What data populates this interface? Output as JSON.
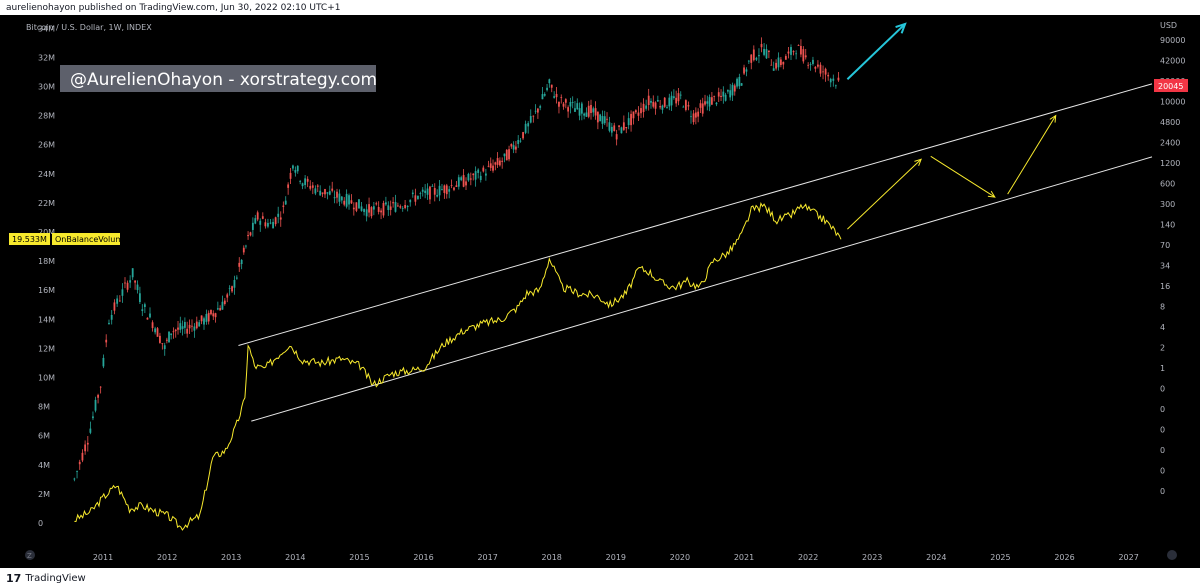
{
  "header": {
    "author": "aurelienohayon",
    "published_on": "published on TradingView.com,",
    "date": "Jun 30, 2022 02:10 UTC+1"
  },
  "footer": {
    "logo_icon": "tradingview-logo-icon",
    "brand": "TradingView"
  },
  "chart_data": {
    "type": "line",
    "title": "Bitcoin / U.S. Dollar, 1W, INDEX",
    "watermark_label": "@AurelienOhayon - xorstrategy.com",
    "indicator": {
      "name": "OnBalanceVolume",
      "value": "19.533M",
      "color": "#f7e92d"
    },
    "price_tag": {
      "value": "20045",
      "color": "#f23645"
    },
    "x_ticks": [
      "2011",
      "2012",
      "2013",
      "2014",
      "2015",
      "2016",
      "2017",
      "2018",
      "2019",
      "2020",
      "2021",
      "2022",
      "2023",
      "2024",
      "2025",
      "2026",
      "2027"
    ],
    "left_axis": {
      "labels": [
        "34M",
        "32M",
        "30M",
        "28M",
        "26M",
        "24M",
        "22M",
        "20M",
        "18M",
        "16M",
        "14M",
        "12M",
        "10M",
        "8M",
        "6M",
        "4M",
        "2M",
        "0"
      ],
      "min": 0,
      "max": 34000000
    },
    "right_axis": {
      "unit": "USD",
      "labels": [
        "90000",
        "42000",
        "20000",
        "10000",
        "4800",
        "2400",
        "1200",
        "600",
        "300",
        "140",
        "70",
        "34",
        "16",
        "8",
        "4",
        "2",
        "1",
        "0",
        "0",
        "0",
        "0",
        "0",
        "0"
      ],
      "scale": "log"
    },
    "series": [
      {
        "kind": "candlestick",
        "up_color": "#26a69a",
        "down_color": "#ef5350",
        "points": [
          [
            2010.54,
            3.0
          ],
          [
            2010.75,
            5.8
          ],
          [
            2010.95,
            9.5
          ],
          [
            2011.08,
            14.0
          ],
          [
            2011.25,
            15.5
          ],
          [
            2011.45,
            17.1
          ],
          [
            2011.6,
            15.0
          ],
          [
            2011.8,
            13.5
          ],
          [
            2011.95,
            12.0
          ],
          [
            2012.05,
            13.2
          ],
          [
            2012.3,
            13.4
          ],
          [
            2012.6,
            14.0
          ],
          [
            2012.85,
            15.0
          ],
          [
            2013.0,
            16.0
          ],
          [
            2013.15,
            18.0
          ],
          [
            2013.25,
            19.5
          ],
          [
            2013.4,
            21.0
          ],
          [
            2013.6,
            20.5
          ],
          [
            2013.8,
            21.5
          ],
          [
            2013.95,
            24.8
          ],
          [
            2014.1,
            23.5
          ],
          [
            2014.3,
            23.0
          ],
          [
            2014.6,
            22.5
          ],
          [
            2014.9,
            22.0
          ],
          [
            2015.1,
            21.5
          ],
          [
            2015.4,
            21.6
          ],
          [
            2015.7,
            22.0
          ],
          [
            2015.9,
            22.5
          ],
          [
            2016.2,
            22.8
          ],
          [
            2016.5,
            23.3
          ],
          [
            2016.8,
            23.8
          ],
          [
            2017.0,
            24.3
          ],
          [
            2017.25,
            25.0
          ],
          [
            2017.5,
            26.5
          ],
          [
            2017.7,
            27.8
          ],
          [
            2017.95,
            30.1
          ],
          [
            2018.1,
            29.0
          ],
          [
            2018.35,
            28.5
          ],
          [
            2018.6,
            28.3
          ],
          [
            2018.85,
            27.5
          ],
          [
            2019.0,
            26.8
          ],
          [
            2019.3,
            28.0
          ],
          [
            2019.5,
            29.0
          ],
          [
            2019.75,
            28.8
          ],
          [
            2020.0,
            29.2
          ],
          [
            2020.2,
            28.0
          ],
          [
            2020.45,
            29.0
          ],
          [
            2020.7,
            29.3
          ],
          [
            2020.95,
            30.5
          ],
          [
            2021.1,
            32.0
          ],
          [
            2021.3,
            32.6
          ],
          [
            2021.45,
            31.5
          ],
          [
            2021.6,
            31.7
          ],
          [
            2021.8,
            32.7
          ],
          [
            2021.95,
            32.0
          ],
          [
            2022.1,
            31.5
          ],
          [
            2022.3,
            30.8
          ],
          [
            2022.5,
            30.1
          ]
        ]
      },
      {
        "name": "OnBalanceVolume",
        "kind": "line",
        "color": "#f7e92d",
        "points": [
          [
            2010.54,
            0.2
          ],
          [
            2010.8,
            0.8
          ],
          [
            2011.0,
            1.8
          ],
          [
            2011.2,
            2.6
          ],
          [
            2011.4,
            1.0
          ],
          [
            2011.6,
            1.2
          ],
          [
            2011.8,
            0.8
          ],
          [
            2012.0,
            0.5
          ],
          [
            2012.2,
            -0.3
          ],
          [
            2012.5,
            0.5
          ],
          [
            2012.7,
            4.5
          ],
          [
            2012.9,
            5.0
          ],
          [
            2013.05,
            6.5
          ],
          [
            2013.2,
            8.5
          ],
          [
            2013.25,
            12.3
          ],
          [
            2013.35,
            10.8
          ],
          [
            2013.5,
            10.6
          ],
          [
            2013.6,
            11.0
          ],
          [
            2013.9,
            12.3
          ],
          [
            2014.1,
            11.2
          ],
          [
            2014.4,
            11.0
          ],
          [
            2014.7,
            11.3
          ],
          [
            2015.0,
            10.8
          ],
          [
            2015.2,
            9.5
          ],
          [
            2015.5,
            10.3
          ],
          [
            2015.8,
            10.5
          ],
          [
            2016.0,
            10.7
          ],
          [
            2016.3,
            12.3
          ],
          [
            2016.6,
            13.2
          ],
          [
            2016.9,
            13.7
          ],
          [
            2017.2,
            14.0
          ],
          [
            2017.45,
            14.8
          ],
          [
            2017.6,
            15.8
          ],
          [
            2017.8,
            16.0
          ],
          [
            2017.95,
            18.2
          ],
          [
            2018.15,
            16.2
          ],
          [
            2018.4,
            15.8
          ],
          [
            2018.7,
            15.6
          ],
          [
            2018.9,
            15.0
          ],
          [
            2019.15,
            15.8
          ],
          [
            2019.35,
            17.5
          ],
          [
            2019.5,
            17.3
          ],
          [
            2019.7,
            16.5
          ],
          [
            2019.9,
            16.2
          ],
          [
            2020.1,
            16.6
          ],
          [
            2020.3,
            16.2
          ],
          [
            2020.5,
            18.0
          ],
          [
            2020.75,
            18.6
          ],
          [
            2020.95,
            19.8
          ],
          [
            2021.1,
            21.5
          ],
          [
            2021.3,
            21.8
          ],
          [
            2021.5,
            20.8
          ],
          [
            2021.7,
            21.1
          ],
          [
            2021.9,
            21.8
          ],
          [
            2022.05,
            21.4
          ],
          [
            2022.25,
            20.8
          ],
          [
            2022.4,
            20.1
          ],
          [
            2022.5,
            19.5
          ]
        ]
      }
    ],
    "channel": {
      "color": "#e6e6e6",
      "upper": [
        [
          2013.1,
          12.2
        ],
        [
          2028.0,
          31.0
        ]
      ],
      "lower": [
        [
          2013.3,
          7.0
        ],
        [
          2028.0,
          26.0
        ]
      ]
    },
    "projection_arrows": [
      {
        "color": "#f7e92d",
        "points": [
          [
            2022.6,
            20.2
          ],
          [
            2023.75,
            25.0
          ]
        ]
      },
      {
        "color": "#f7e92d",
        "points": [
          [
            2023.9,
            25.2
          ],
          [
            2024.9,
            22.4
          ]
        ]
      },
      {
        "color": "#f7e92d",
        "points": [
          [
            2025.1,
            22.6
          ],
          [
            2025.85,
            28.0
          ]
        ]
      },
      {
        "color": "#26c6da",
        "points": [
          [
            2022.6,
            30.5
          ],
          [
            2023.5,
            34.3
          ]
        ]
      }
    ]
  }
}
